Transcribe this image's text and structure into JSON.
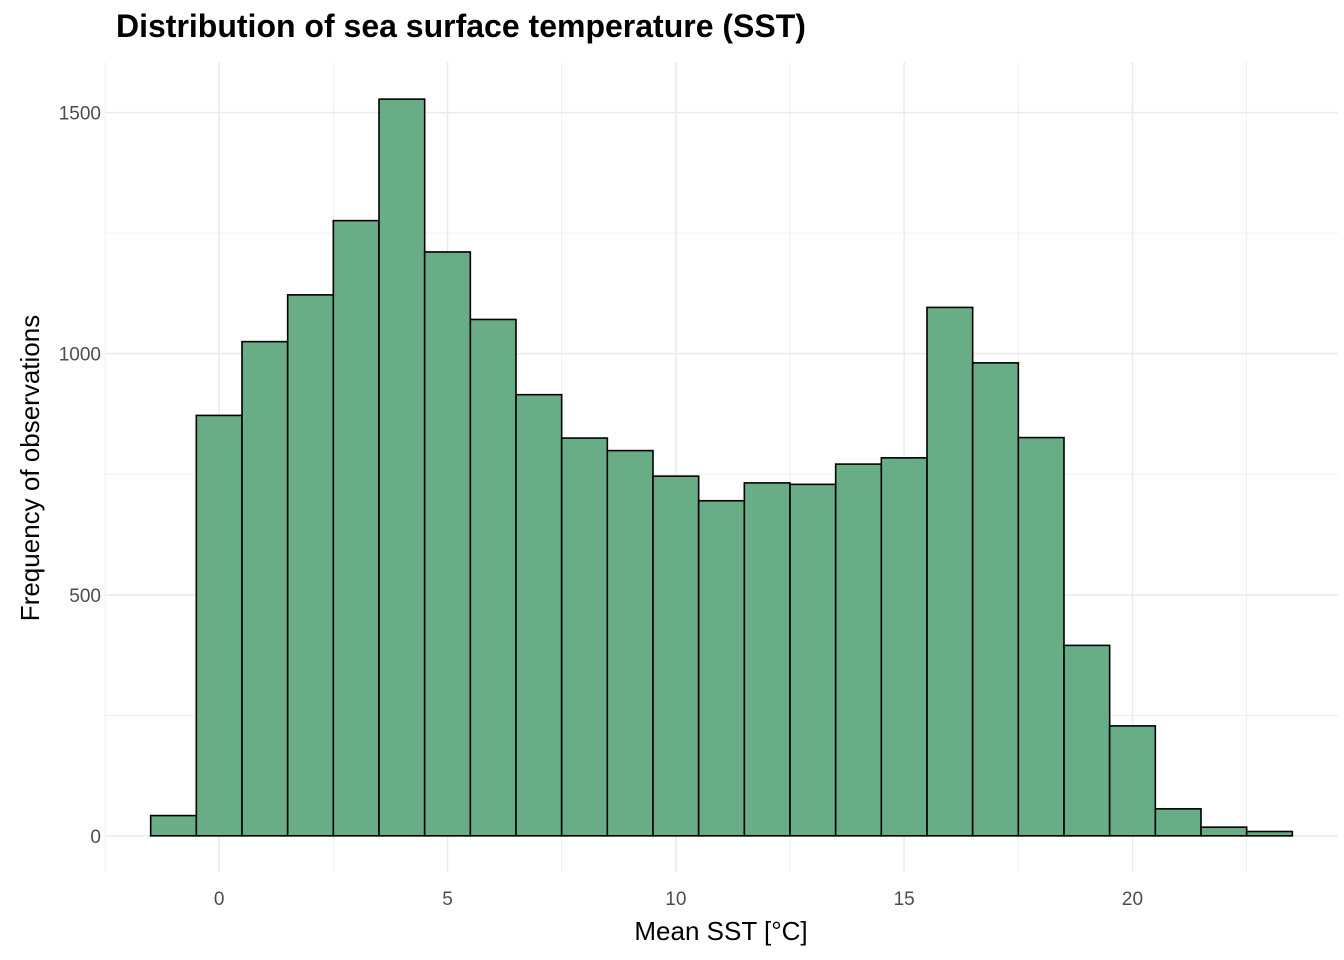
{
  "chart_data": {
    "type": "bar",
    "title": "Distribution of sea surface temperature (SST)",
    "xlabel": "Mean SST [°C]",
    "ylabel": "Frequency of observations",
    "bin_width": 1,
    "bins": [
      {
        "x": -1,
        "count": 42
      },
      {
        "x": 0,
        "count": 872
      },
      {
        "x": 1,
        "count": 1025
      },
      {
        "x": 2,
        "count": 1122
      },
      {
        "x": 3,
        "count": 1276
      },
      {
        "x": 4,
        "count": 1528
      },
      {
        "x": 5,
        "count": 1211
      },
      {
        "x": 6,
        "count": 1071
      },
      {
        "x": 7,
        "count": 915
      },
      {
        "x": 8,
        "count": 825
      },
      {
        "x": 9,
        "count": 799
      },
      {
        "x": 10,
        "count": 746
      },
      {
        "x": 11,
        "count": 695
      },
      {
        "x": 12,
        "count": 732
      },
      {
        "x": 13,
        "count": 729
      },
      {
        "x": 14,
        "count": 771
      },
      {
        "x": 15,
        "count": 784
      },
      {
        "x": 16,
        "count": 1096
      },
      {
        "x": 17,
        "count": 981
      },
      {
        "x": 18,
        "count": 826
      },
      {
        "x": 19,
        "count": 395
      },
      {
        "x": 20,
        "count": 228
      },
      {
        "x": 21,
        "count": 56
      },
      {
        "x": 22,
        "count": 18
      },
      {
        "x": 23,
        "count": 9
      }
    ],
    "xlim": [
      -2.5,
      24.5
    ],
    "ylim": [
      -75,
      1605
    ],
    "x_ticks": [
      0,
      5,
      10,
      15,
      20
    ],
    "y_ticks": [
      0,
      500,
      1000,
      1500
    ],
    "grid": true,
    "bar_fill": "#69AD87",
    "bar_stroke": "#000000",
    "grid_color": "#EBEBEB"
  }
}
